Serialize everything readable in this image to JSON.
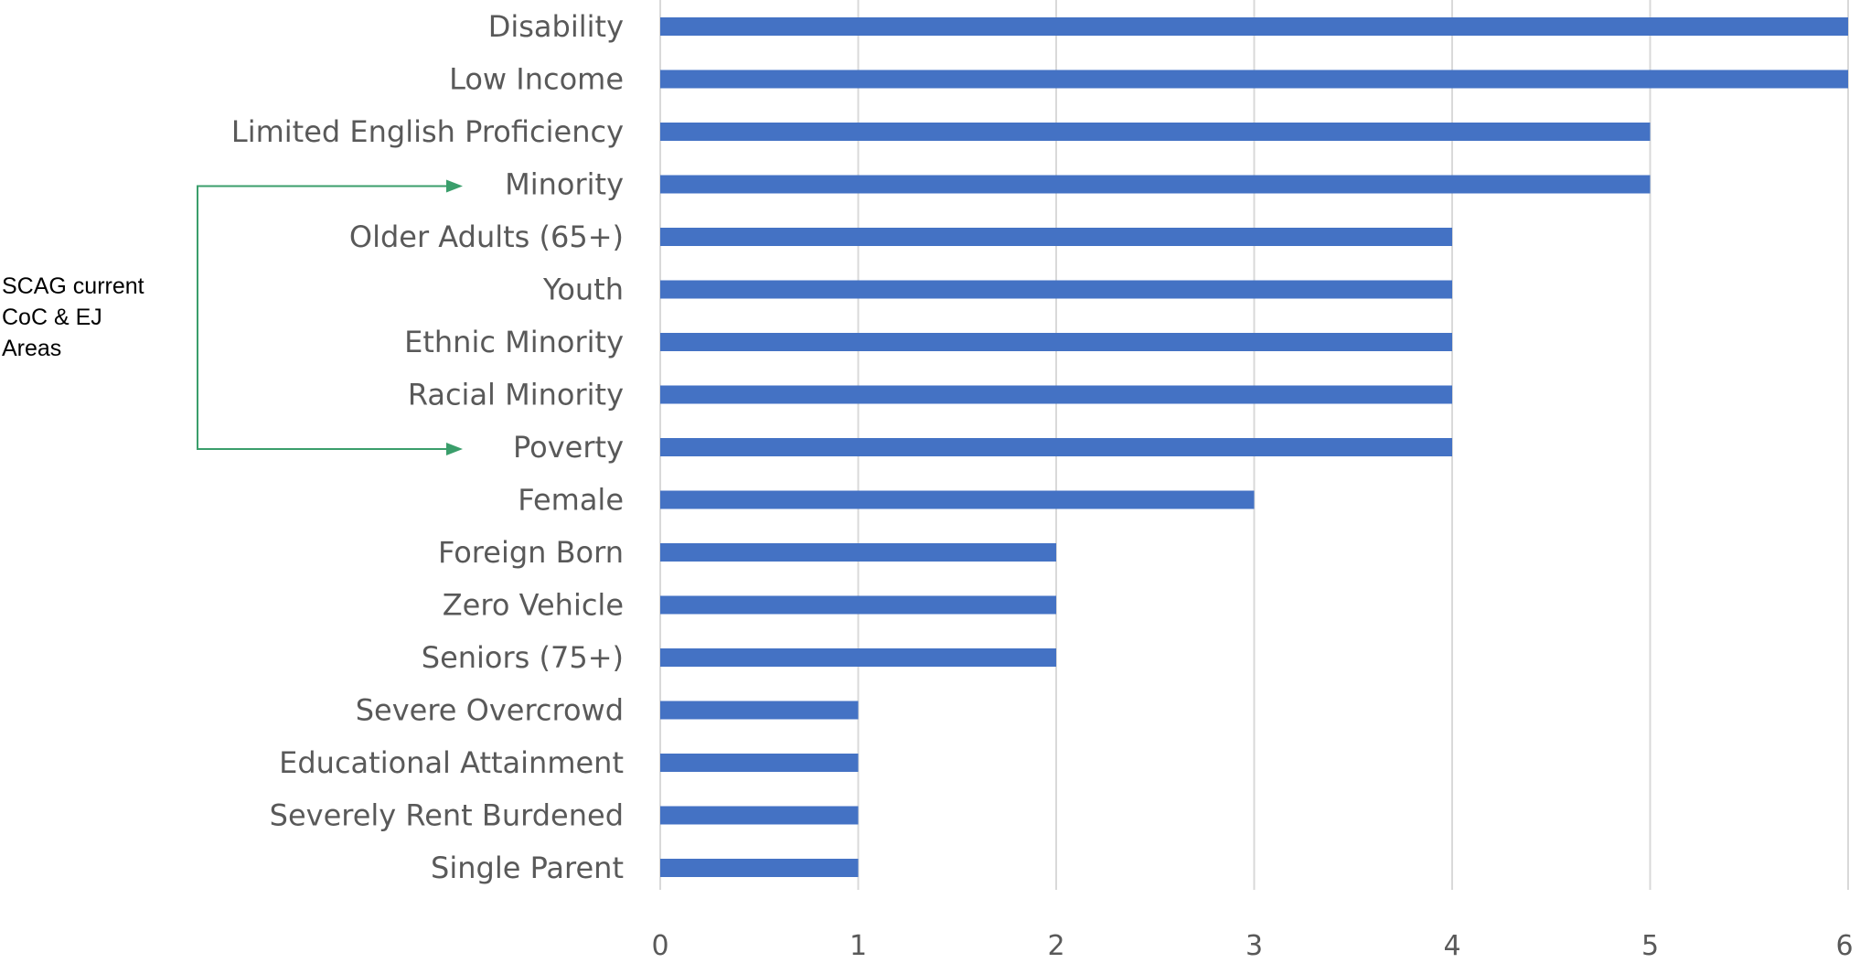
{
  "chart_data": {
    "type": "bar",
    "orientation": "horizontal",
    "categories": [
      "Disability",
      "Low Income",
      "Limited English Proficiency",
      "Minority",
      "Older Adults (65+)",
      "Youth",
      "Ethnic Minority",
      "Racial Minority",
      "Poverty",
      "Female",
      "Foreign Born",
      "Zero Vehicle",
      "Seniors (75+)",
      "Severe Overcrowd",
      "Educational Attainment",
      "Severely Rent Burdened",
      "Single Parent"
    ],
    "values": [
      6,
      6,
      5,
      5,
      4,
      4,
      4,
      4,
      4,
      3,
      2,
      2,
      2,
      1,
      1,
      1,
      1
    ],
    "x_ticks": [
      "0",
      "1",
      "2",
      "3",
      "4",
      "5",
      "6"
    ],
    "xlim": [
      0,
      6
    ],
    "grid": "vertical",
    "title": "",
    "xlabel": "",
    "ylabel": "",
    "legend": "none",
    "annotation": {
      "text": "SCAG current\nCoC & EJ\nAreas",
      "bracket_from": "Minority",
      "bracket_to": "Poverty"
    }
  },
  "colors": {
    "bar": "#4472C4",
    "grid": "#D9D9D9",
    "category_label": "#595959",
    "tick_label": "#595959",
    "bracket": "#3A9E6B",
    "annotation_text": "#000000"
  }
}
